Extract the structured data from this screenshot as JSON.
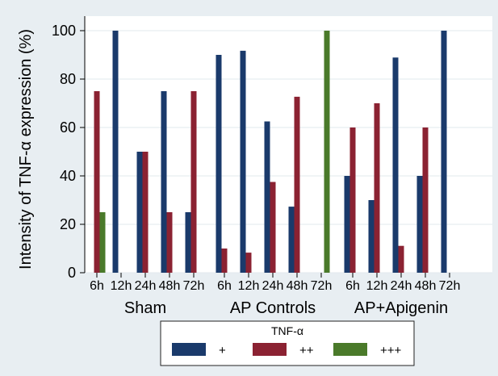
{
  "chart_data": {
    "type": "bar",
    "ylabel": "Intensity of TNF-α expression (%)",
    "ylim": [
      0,
      100
    ],
    "yticks": [
      0,
      20,
      40,
      60,
      80,
      100
    ],
    "grid": "horizontal",
    "groups": [
      {
        "name": "Sham",
        "categories": [
          "6h",
          "12h",
          "24h",
          "48h",
          "72h"
        ],
        "series": [
          {
            "name": "+",
            "values": [
              0,
              100,
              50,
              75,
              25
            ]
          },
          {
            "name": "++",
            "values": [
              75,
              0,
              50,
              25,
              75
            ]
          },
          {
            "name": "+++",
            "values": [
              25,
              0,
              0,
              0,
              0
            ]
          }
        ]
      },
      {
        "name": "AP Controls",
        "categories": [
          "6h",
          "12h",
          "24h",
          "48h",
          "72h"
        ],
        "series": [
          {
            "name": "+",
            "values": [
              90,
              91.7,
              62.5,
              27.3,
              0
            ]
          },
          {
            "name": "++",
            "values": [
              10,
              8.3,
              37.5,
              72.7,
              0
            ]
          },
          {
            "name": "+++",
            "values": [
              0,
              0,
              0,
              0,
              100
            ]
          }
        ]
      },
      {
        "name": "AP+Apigenin",
        "categories": [
          "6h",
          "12h",
          "24h",
          "48h",
          "72h"
        ],
        "series": [
          {
            "name": "+",
            "values": [
              40,
              30,
              88.9,
              40,
              100
            ]
          },
          {
            "name": "++",
            "values": [
              60,
              70,
              11.1,
              60,
              0
            ]
          },
          {
            "name": "+++",
            "values": [
              0,
              0,
              0,
              0,
              0
            ]
          }
        ]
      }
    ],
    "legend": {
      "title": "TNF-α",
      "position": "bottom",
      "entries": [
        {
          "label": "+",
          "color": "#1a3a6b"
        },
        {
          "label": "++",
          "color": "#8b2232"
        },
        {
          "label": "+++",
          "color": "#4a7a2a"
        }
      ]
    }
  }
}
